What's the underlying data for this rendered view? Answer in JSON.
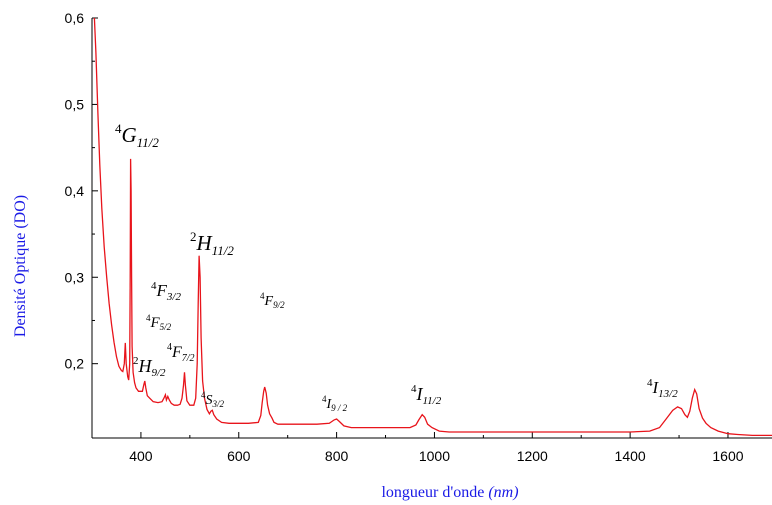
{
  "chart_data": {
    "type": "line",
    "xlabel": "longueur d'onde",
    "xlabel_unit": "(nm)",
    "ylabel": "Densité Optique (DO)",
    "xlim": [
      300,
      1690
    ],
    "ylim": [
      0.114,
      0.6
    ],
    "x_ticks": [
      400,
      600,
      800,
      1000,
      1200,
      1400,
      1600
    ],
    "x_tick_labels": [
      "400",
      "600",
      "800",
      "1000",
      "1200",
      "1400",
      "1600"
    ],
    "y_ticks": [
      0.2,
      0.3,
      0.4,
      0.5,
      0.6
    ],
    "y_tick_labels": [
      "0,2",
      "0,3",
      "0,4",
      "0,5",
      "0,6"
    ],
    "line_color": "#e8141b",
    "axis_title_color": "#1a1ae6",
    "grid": false,
    "series": [
      {
        "points": [
          [
            305,
            0.6
          ],
          [
            308,
            0.56
          ],
          [
            312,
            0.49
          ],
          [
            316,
            0.43
          ],
          [
            320,
            0.38
          ],
          [
            325,
            0.335
          ],
          [
            330,
            0.3
          ],
          [
            335,
            0.27
          ],
          [
            340,
            0.245
          ],
          [
            345,
            0.225
          ],
          [
            350,
            0.208
          ],
          [
            355,
            0.197
          ],
          [
            360,
            0.192
          ],
          [
            363,
            0.191
          ],
          [
            366,
            0.2
          ],
          [
            368,
            0.224
          ],
          [
            370,
            0.2
          ],
          [
            373,
            0.185
          ],
          [
            375,
            0.181
          ],
          [
            377,
            0.2
          ],
          [
            378,
            0.3
          ],
          [
            379,
            0.437
          ],
          [
            380,
            0.4
          ],
          [
            381,
            0.3
          ],
          [
            382,
            0.22
          ],
          [
            384,
            0.19
          ],
          [
            387,
            0.178
          ],
          [
            390,
            0.172
          ],
          [
            395,
            0.168
          ],
          [
            400,
            0.168
          ],
          [
            403,
            0.168
          ],
          [
            406,
            0.176
          ],
          [
            408,
            0.18
          ],
          [
            410,
            0.172
          ],
          [
            413,
            0.163
          ],
          [
            418,
            0.16
          ],
          [
            425,
            0.156
          ],
          [
            435,
            0.155
          ],
          [
            443,
            0.156
          ],
          [
            447,
            0.16
          ],
          [
            450,
            0.164
          ],
          [
            452,
            0.158
          ],
          [
            455,
            0.162
          ],
          [
            458,
            0.158
          ],
          [
            462,
            0.154
          ],
          [
            468,
            0.152
          ],
          [
            475,
            0.152
          ],
          [
            480,
            0.153
          ],
          [
            484,
            0.16
          ],
          [
            487,
            0.175
          ],
          [
            489,
            0.19
          ],
          [
            491,
            0.175
          ],
          [
            494,
            0.157
          ],
          [
            500,
            0.152
          ],
          [
            508,
            0.152
          ],
          [
            512,
            0.16
          ],
          [
            515,
            0.2
          ],
          [
            517,
            0.27
          ],
          [
            519,
            0.325
          ],
          [
            521,
            0.3
          ],
          [
            523,
            0.23
          ],
          [
            526,
            0.18
          ],
          [
            530,
            0.16
          ],
          [
            535,
            0.147
          ],
          [
            540,
            0.142
          ],
          [
            543,
            0.145
          ],
          [
            546,
            0.146
          ],
          [
            549,
            0.141
          ],
          [
            555,
            0.136
          ],
          [
            565,
            0.132
          ],
          [
            580,
            0.131
          ],
          [
            600,
            0.131
          ],
          [
            620,
            0.131
          ],
          [
            640,
            0.132
          ],
          [
            645,
            0.14
          ],
          [
            648,
            0.155
          ],
          [
            651,
            0.168
          ],
          [
            653,
            0.173
          ],
          [
            656,
            0.166
          ],
          [
            659,
            0.152
          ],
          [
            663,
            0.142
          ],
          [
            668,
            0.137
          ],
          [
            672,
            0.132
          ],
          [
            680,
            0.13
          ],
          [
            700,
            0.13
          ],
          [
            730,
            0.13
          ],
          [
            760,
            0.13
          ],
          [
            785,
            0.131
          ],
          [
            795,
            0.135
          ],
          [
            800,
            0.136
          ],
          [
            806,
            0.133
          ],
          [
            815,
            0.128
          ],
          [
            830,
            0.126
          ],
          [
            850,
            0.126
          ],
          [
            880,
            0.126
          ],
          [
            920,
            0.126
          ],
          [
            950,
            0.126
          ],
          [
            962,
            0.129
          ],
          [
            968,
            0.135
          ],
          [
            975,
            0.141
          ],
          [
            980,
            0.138
          ],
          [
            986,
            0.13
          ],
          [
            995,
            0.126
          ],
          [
            1010,
            0.122
          ],
          [
            1030,
            0.121
          ],
          [
            1060,
            0.121
          ],
          [
            1100,
            0.121
          ],
          [
            1150,
            0.121
          ],
          [
            1200,
            0.121
          ],
          [
            1250,
            0.121
          ],
          [
            1300,
            0.121
          ],
          [
            1350,
            0.121
          ],
          [
            1400,
            0.121
          ],
          [
            1440,
            0.122
          ],
          [
            1460,
            0.126
          ],
          [
            1475,
            0.137
          ],
          [
            1487,
            0.146
          ],
          [
            1497,
            0.15
          ],
          [
            1505,
            0.148
          ],
          [
            1512,
            0.141
          ],
          [
            1517,
            0.138
          ],
          [
            1522,
            0.145
          ],
          [
            1527,
            0.16
          ],
          [
            1532,
            0.17
          ],
          [
            1536,
            0.165
          ],
          [
            1541,
            0.148
          ],
          [
            1548,
            0.137
          ],
          [
            1555,
            0.131
          ],
          [
            1565,
            0.126
          ],
          [
            1580,
            0.122
          ],
          [
            1600,
            0.119
          ],
          [
            1620,
            0.118
          ],
          [
            1650,
            0.117
          ],
          [
            1690,
            0.117
          ]
        ]
      }
    ],
    "annotations": [
      {
        "sup": "4",
        "sym": "G",
        "sub": "11/2"
      },
      {
        "sup": "2",
        "sym": "H",
        "sub": "11/2"
      },
      {
        "sup": "4",
        "sym": "F",
        "sub": "3/2"
      },
      {
        "sup": "4",
        "sym": "F",
        "sub": "5/2"
      },
      {
        "sup": "2",
        "sym": "H",
        "sub": "9/2"
      },
      {
        "sup": "4",
        "sym": "F",
        "sub": "7/2"
      },
      {
        "sup": "4",
        "sym": "S",
        "sub": "3/2"
      },
      {
        "sup": "4",
        "sym": "F",
        "sub": "9/2"
      },
      {
        "sup": "4",
        "sym": "I",
        "sub": "9 / 2"
      },
      {
        "sup": "4",
        "sym": "I",
        "sub": "11/2"
      },
      {
        "sup": "4",
        "sym": "I",
        "sub": "13/2"
      }
    ]
  }
}
